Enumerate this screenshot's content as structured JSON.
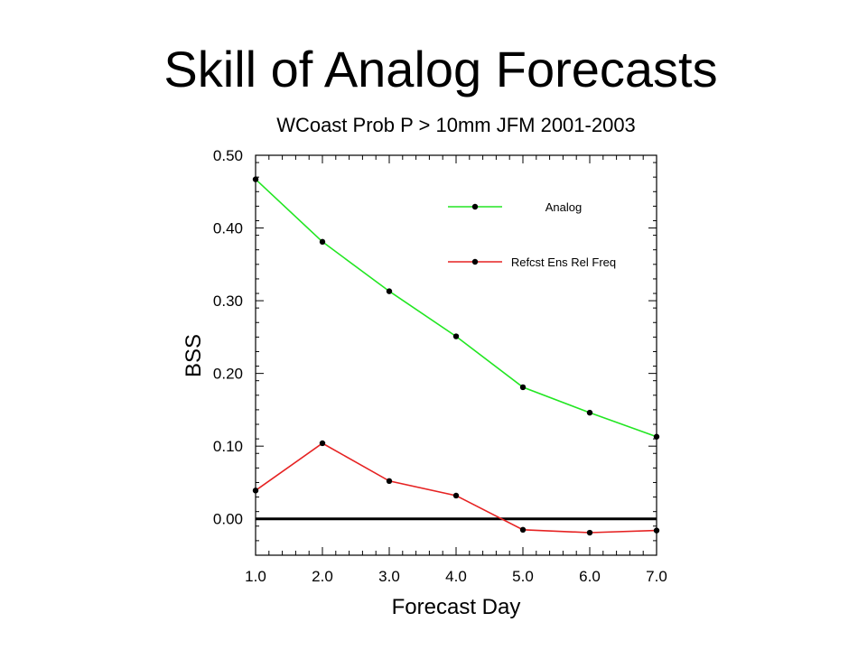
{
  "slide": {
    "title": "Skill of Analog Forecasts"
  },
  "chart_data": {
    "type": "line",
    "title": "WCoast Prob P > 10mm JFM 2001-2003",
    "xlabel": "Forecast Day",
    "ylabel": "BSS",
    "x": [
      1.0,
      2.0,
      3.0,
      4.0,
      5.0,
      6.0,
      7.0
    ],
    "xlim": [
      1.0,
      7.0
    ],
    "ylim": [
      -0.05,
      0.5
    ],
    "xticks": [
      "1.0",
      "2.0",
      "3.0",
      "4.0",
      "5.0",
      "6.0",
      "7.0"
    ],
    "yticks": [
      "0.50",
      "0.40",
      "0.30",
      "0.20",
      "0.10",
      "0.00"
    ],
    "ytick_values": [
      0.5,
      0.4,
      0.3,
      0.2,
      0.1,
      0.0
    ],
    "reference_line": 0.0,
    "grid": false,
    "legend_position": "top-right",
    "series": [
      {
        "name": "Analog",
        "color": "#22e622",
        "values": [
          0.467,
          0.381,
          0.313,
          0.251,
          0.181,
          0.146,
          0.113
        ]
      },
      {
        "name": "Refcst Ens Rel Freq",
        "color": "#e62222",
        "values": [
          0.039,
          0.104,
          0.052,
          0.032,
          -0.015,
          -0.019,
          -0.016
        ]
      }
    ]
  }
}
